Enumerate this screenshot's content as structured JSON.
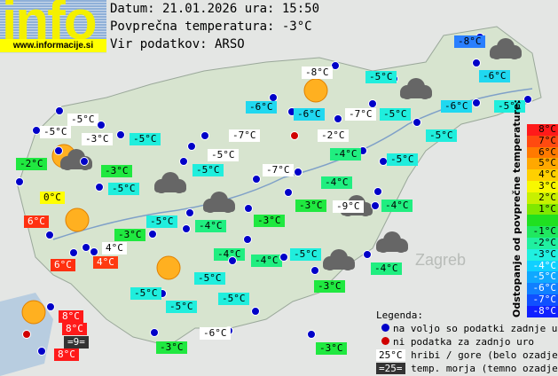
{
  "header": {
    "logo_text": "info",
    "logo_url": "www.informacije.si",
    "date_line": "Datum: 21.01.2026 ura: 15:50",
    "avg_line": "Povprečna temperatura: -3°C",
    "source_line": "Vir podatkov: ARSO"
  },
  "map": {
    "city_label": "Zagreb"
  },
  "stations": [
    "-8°C",
    "-8°C",
    "-5°C",
    "-6°C",
    "-6°C",
    "-6°C",
    "-7°C",
    "-5°C",
    "-6°C",
    "-5°C",
    "-5°C",
    "-5°C",
    "-3°C",
    "-5°C",
    "-7°C",
    "-2°C",
    "-5°C",
    "-2°C",
    "-5°C",
    "-4°C",
    "-5°C",
    "-3°C",
    "-5°C",
    "-7°C",
    "-4°C",
    "0°C",
    "-5°C",
    "-3°C",
    "-9°C",
    "-4°C",
    "6°C",
    "-5°C",
    "-4°C",
    "-3°C",
    "-3°C",
    "4°C",
    "-4°C",
    "-4°C",
    "-5°C",
    "-4°C",
    "6°C",
    "4°C",
    "-5°C",
    "-3°C",
    "-5°C",
    "-5°C",
    "-5°C",
    "8°C",
    "8°C",
    "=9=",
    "8°C",
    "-6°C",
    "-3°C",
    "-3°C"
  ],
  "scale": {
    "title": "Odstopanje od povprečne temperature:",
    "steps": [
      "8°C",
      "7°C",
      "6°C",
      "5°C",
      "4°C",
      "3°C",
      "2°C",
      "1°C",
      "",
      "-1°C",
      "-2°C",
      "-3°C",
      "-4°C",
      "-5°C",
      "-6°C",
      "-7°C",
      "-8°C"
    ],
    "colors": [
      "#ff1a1a",
      "#ff4a10",
      "#ff7a00",
      "#ffa800",
      "#ffd000",
      "#f8f800",
      "#c8f000",
      "#80e800",
      "#20e020",
      "#20e860",
      "#20f0a0",
      "#20f0e0",
      "#10d0ff",
      "#10a8ff",
      "#1080ff",
      "#1050ff",
      "#1020ff"
    ]
  },
  "legend": {
    "title": "Legenda:",
    "available": "na voljo so podatki zadnje ure",
    "missing": "ni podatka za zadnjo uro",
    "hill_sample": "25°C",
    "hill_text": "hribi / gore (belo ozadje)",
    "sea_sample": "=25=",
    "sea_text": "temp. morja (temno ozadje)"
  },
  "colors": {
    "hill": "#ffffff",
    "sea": "#333333",
    "dot_ok": "#0000c8",
    "dot_missing": "#d00000"
  }
}
